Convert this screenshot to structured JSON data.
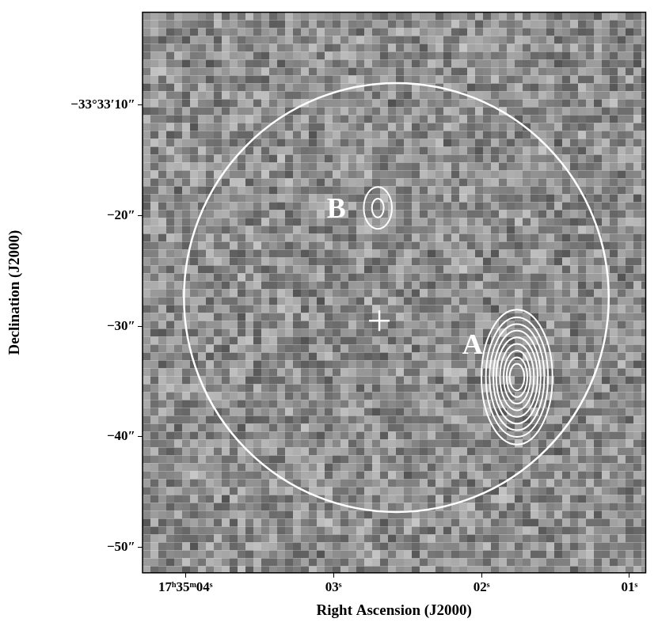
{
  "chart_data": {
    "type": "scatter",
    "x_label": "Right Ascension (J2000)",
    "y_label": "Declination (J2000)",
    "xlim": [
      4.29,
      0.89
    ],
    "xticks": [
      {
        "value": 4,
        "label": "17ʰ35ᵐ04ˢ"
      },
      {
        "value": 3,
        "label": "03ˢ"
      },
      {
        "value": 2,
        "label": "02ˢ"
      },
      {
        "value": 1,
        "label": "01ˢ"
      }
    ],
    "ylim": [
      -52.3,
      -1.6
    ],
    "yticks": [
      {
        "value": -10,
        "label": "−33°33′10″"
      },
      {
        "value": -20,
        "label": "−20″"
      },
      {
        "value": -30,
        "label": "−30″"
      },
      {
        "value": -40,
        "label": "−40″"
      },
      {
        "value": -50,
        "label": "−50″"
      }
    ],
    "grid": false,
    "color": "#ffffff",
    "circle": {
      "x": 2.575,
      "y": -27.4,
      "rx": 1.435,
      "ry": 19.4
    },
    "center_marker": {
      "x": 2.69,
      "y": -29.5,
      "marker": "cross"
    },
    "sources": [
      {
        "label": "A",
        "x": 1.76,
        "y": -34.6,
        "label_x": 2.06,
        "label_y": -31.8,
        "contours": [
          {
            "rx": 0.24,
            "ry": 6.1
          },
          {
            "rx": 0.21,
            "ry": 5.4
          },
          {
            "rx": 0.185,
            "ry": 4.8
          },
          {
            "rx": 0.16,
            "ry": 4.2
          },
          {
            "rx": 0.14,
            "ry": 3.6
          },
          {
            "rx": 0.115,
            "ry": 3.0
          },
          {
            "rx": 0.09,
            "ry": 2.4
          },
          {
            "rx": 0.07,
            "ry": 1.8
          },
          {
            "rx": 0.05,
            "ry": 1.2
          }
        ]
      },
      {
        "label": "B",
        "x": 2.7,
        "y": -19.3,
        "label_x": 2.98,
        "label_y": -19.5,
        "contours": [
          {
            "rx": 0.095,
            "ry": 1.9
          },
          {
            "rx": 0.04,
            "ry": 0.85
          }
        ]
      }
    ]
  }
}
